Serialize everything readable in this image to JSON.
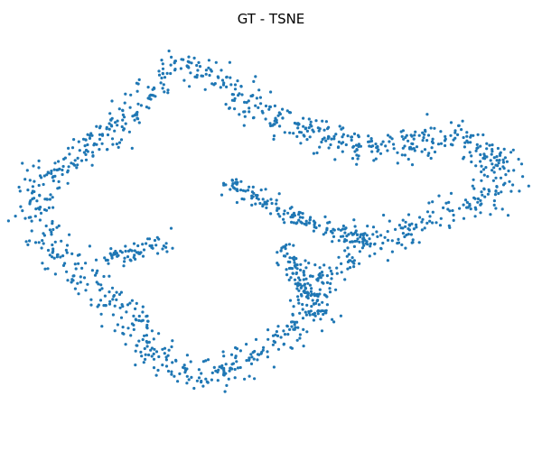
{
  "chart_data": {
    "type": "scatter",
    "title": "GT - TSNE",
    "xlabel": "",
    "ylabel": "",
    "axes_visible": false,
    "grid": false,
    "legend": "none",
    "marker_color": "#1f77b4",
    "series": [
      {
        "name": "",
        "generator": "closed-outline-band",
        "n_points": 1500,
        "outline": [
          [
            -0.98,
            0.28
          ],
          [
            -0.84,
            0.42
          ],
          [
            -0.65,
            0.57
          ],
          [
            -0.55,
            0.75
          ],
          [
            -0.39,
            0.94
          ],
          [
            -0.2,
            0.84
          ],
          [
            -0.05,
            0.68
          ],
          [
            0.15,
            0.54
          ],
          [
            0.35,
            0.48
          ],
          [
            0.53,
            0.45
          ],
          [
            0.7,
            0.54
          ],
          [
            0.85,
            0.49
          ],
          [
            1.0,
            0.38
          ],
          [
            0.94,
            0.2
          ],
          [
            0.74,
            0.1
          ],
          [
            0.55,
            0.0
          ],
          [
            0.4,
            -0.05
          ],
          [
            0.25,
            -0.2
          ],
          [
            0.2,
            -0.35
          ],
          [
            0.05,
            -0.55
          ],
          [
            -0.1,
            -0.7
          ],
          [
            -0.3,
            -0.78
          ],
          [
            -0.5,
            -0.65
          ],
          [
            -0.62,
            -0.42
          ],
          [
            -0.72,
            -0.3
          ],
          [
            -0.9,
            -0.12
          ],
          [
            -1.0,
            0.05
          ]
        ],
        "inner_branches": [
          [
            [
              -0.72,
              -0.15
            ],
            [
              -0.57,
              -0.08
            ],
            [
              -0.44,
              -0.04
            ]
          ],
          [
            [
              -0.19,
              0.28
            ],
            [
              -0.05,
              0.19
            ],
            [
              0.09,
              0.09
            ],
            [
              0.22,
              0.03
            ],
            [
              0.4,
              -0.02
            ]
          ],
          [
            [
              0.06,
              -0.06
            ],
            [
              0.12,
              -0.25
            ],
            [
              0.23,
              -0.45
            ]
          ]
        ]
      }
    ]
  }
}
